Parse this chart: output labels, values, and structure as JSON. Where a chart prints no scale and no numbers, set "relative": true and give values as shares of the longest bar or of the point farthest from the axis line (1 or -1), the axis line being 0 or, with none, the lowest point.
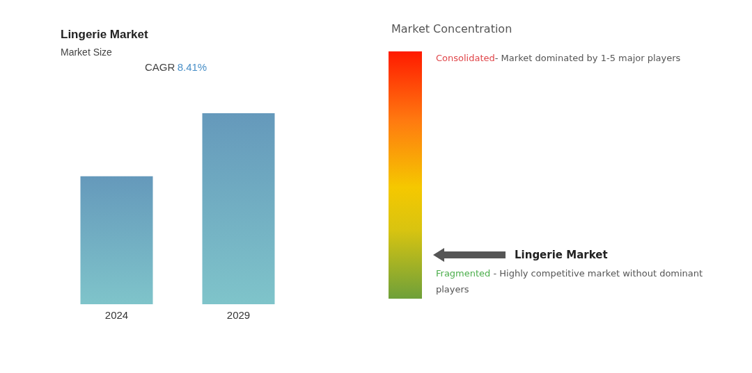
{
  "chart_data": [
    {
      "type": "bar",
      "title": "Lingerie Market",
      "subtitle": "Market Size",
      "categories": [
        "2024",
        "2029"
      ],
      "values": [
        0.67,
        1
      ],
      "color": "#6599bb",
      "relative": true,
      "annotations": [
        "CAGR",
        "8.41%"
      ]
    },
    {
      "type": "other",
      "title": "Market Concentration",
      "annotations": [
        "Consolidated",
        "- Market dominated by 1-5 major players",
        "Lingerie Market",
        "Fragmented",
        " - Highly competitive market without dominant players"
      ]
    }
  ]
}
